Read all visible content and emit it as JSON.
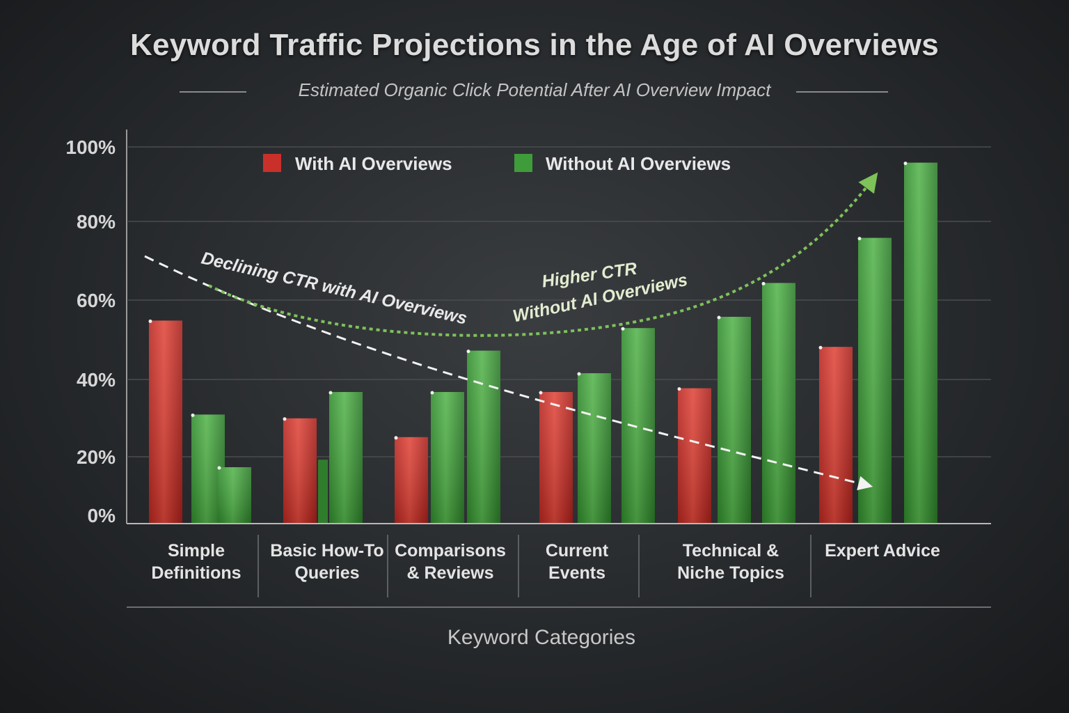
{
  "colors": {
    "with_ai": "#c9302a",
    "without_ai": "#3f9c3a",
    "background": "#2a2d30"
  },
  "chart_data": {
    "type": "bar",
    "title": "Keyword Traffic Projections in the Age of AI Overviews",
    "subtitle": "Estimated Organic Click Potential After AI Overview Impact",
    "xlabel": "Keyword Categories",
    "ylabel": "",
    "ylim": [
      0,
      100
    ],
    "yticks": [
      "0%",
      "20%",
      "40%",
      "60%",
      "80%",
      "100%"
    ],
    "grid": true,
    "legend": {
      "position": "top",
      "entries": [
        {
          "label": "With AI Overviews",
          "color": "#c9302a"
        },
        {
          "label": "Without AI Overviews",
          "color": "#3f9c3a"
        }
      ]
    },
    "categories": [
      {
        "label_lines": [
          "Simple",
          "Definitions"
        ],
        "with_ai": [
          54
        ],
        "without_ai": [
          29,
          15
        ]
      },
      {
        "label_lines": [
          "Basic How-To",
          "Queries"
        ],
        "with_ai": [
          28
        ],
        "without_ai": [
          35
        ]
      },
      {
        "label_lines": [
          "Comparisons",
          "& Reviews"
        ],
        "with_ai": [
          23
        ],
        "without_ai": [
          35,
          46
        ]
      },
      {
        "label_lines": [
          "Current",
          "Events"
        ],
        "with_ai": [
          35
        ],
        "without_ai": [
          40,
          52
        ]
      },
      {
        "label_lines": [
          "Technical &",
          "Niche Topics"
        ],
        "with_ai": [
          36
        ],
        "without_ai": [
          55,
          64
        ]
      },
      {
        "label_lines": [
          "Expert Advice"
        ],
        "with_ai": [
          47
        ],
        "without_ai": [
          76,
          96
        ]
      }
    ],
    "annotations": {
      "declining": "Declining CTR with AI Overviews",
      "higher_line1": "Higher CTR",
      "higher_line2": "Without AI Overviews"
    }
  }
}
